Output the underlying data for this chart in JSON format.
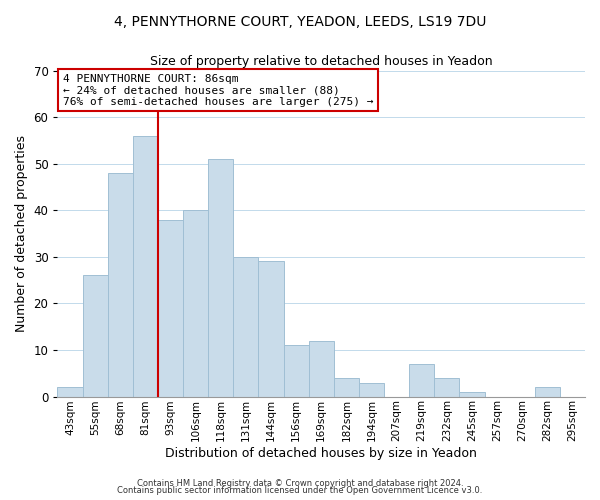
{
  "title1": "4, PENNYTHORNE COURT, YEADON, LEEDS, LS19 7DU",
  "title2": "Size of property relative to detached houses in Yeadon",
  "xlabel": "Distribution of detached houses by size in Yeadon",
  "ylabel": "Number of detached properties",
  "bar_labels": [
    "43sqm",
    "55sqm",
    "68sqm",
    "81sqm",
    "93sqm",
    "106sqm",
    "118sqm",
    "131sqm",
    "144sqm",
    "156sqm",
    "169sqm",
    "182sqm",
    "194sqm",
    "207sqm",
    "219sqm",
    "232sqm",
    "245sqm",
    "257sqm",
    "270sqm",
    "282sqm",
    "295sqm"
  ],
  "bar_values": [
    2,
    26,
    48,
    56,
    38,
    40,
    51,
    30,
    29,
    11,
    12,
    4,
    3,
    0,
    7,
    4,
    1,
    0,
    0,
    2,
    0
  ],
  "bar_color": "#c9dcea",
  "bar_edge_color": "#a0bfd4",
  "vline_color": "#cc0000",
  "vline_x": 3.5,
  "ylim": [
    0,
    70
  ],
  "yticks": [
    0,
    10,
    20,
    30,
    40,
    50,
    60,
    70
  ],
  "annotation_title": "4 PENNYTHORNE COURT: 86sqm",
  "annotation_line1": "← 24% of detached houses are smaller (88)",
  "annotation_line2": "76% of semi-detached houses are larger (275) →",
  "annotation_box_color": "#ffffff",
  "annotation_box_edge": "#cc0000",
  "footer1": "Contains HM Land Registry data © Crown copyright and database right 2024.",
  "footer2": "Contains public sector information licensed under the Open Government Licence v3.0.",
  "bg_color": "#f0f4f8"
}
